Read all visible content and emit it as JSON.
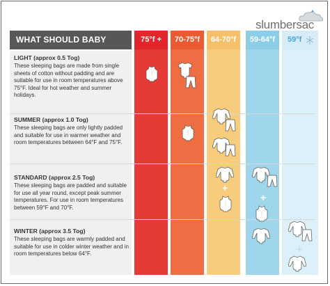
{
  "brand": {
    "name": "slumbersac"
  },
  "table": {
    "heading": "WHAT SHOULD BABY WEAR",
    "columns": [
      {
        "label": "75°f +",
        "head_color": "#e3262c",
        "body_color": "#e53a35"
      },
      {
        "label": "70-75°f",
        "head_color": "#eb5b32",
        "body_color": "#ef6d43"
      },
      {
        "label": "64-70°f",
        "head_color": "#f6c06a",
        "body_color": "#f8cc7d"
      },
      {
        "label": "59-64°f",
        "head_color": "#8ccde8",
        "body_color": "#9fd6ec"
      },
      {
        "label": "59°f",
        "head_color": "#d6ecf6",
        "body_color": "#dcf0f9",
        "icon": "snowflake-icon"
      }
    ],
    "rows": [
      {
        "title": "LIGHT (approx 0.5 Tog)",
        "description": "These sleeping bags are made from single sheets of cotton without padding and are suitable for use in room temperatures above 75°F. Ideal for hot weather and summer holidays."
      },
      {
        "title": "SUMMER (approx 1.0 Tog)",
        "description": "These sleeping bags are only lightly padded and suitable for use in warmer weather and room temperatures between 64°F and 75°F."
      },
      {
        "title": "STANDARD (approx 2.5 Tog)",
        "description": "These sleeping bags are padded and suitable for use all year round, except peak summer temperatures. For use in room temperatures between 59°F and 70°F."
      },
      {
        "title": "WINTER (approx 3.5 Tog)",
        "description": "These sleeping bags are warmly padded and suitable for use in colder winter weather and in room temperatures below 64°F."
      }
    ],
    "plus_sign": "+"
  },
  "icons": {
    "sleeveless": "sleeveless-bodysuit-icon",
    "short_sleeve": "short-sleeve-bodysuit-icon",
    "long_sleeve": "long-sleeve-bodysuit-icon",
    "pants": "pants-icon",
    "cloud": "cloud-logo-icon",
    "snowflake": "snowflake-icon"
  }
}
